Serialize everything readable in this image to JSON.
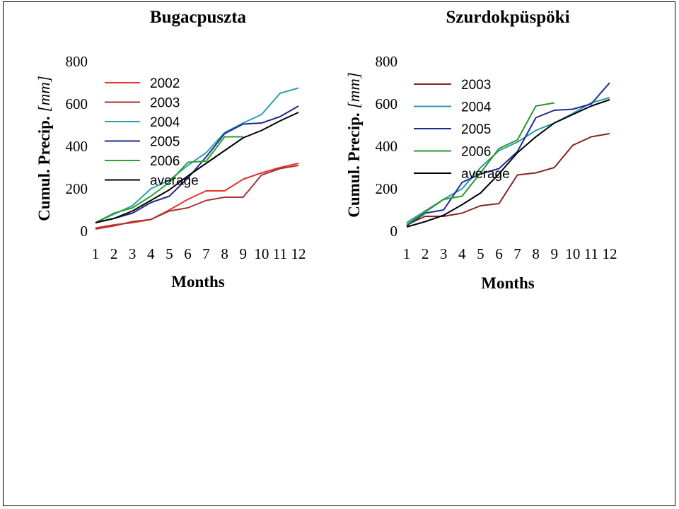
{
  "chart_data": [
    {
      "type": "line",
      "title": "Bugacpuszta",
      "xlabel": "Months",
      "ylabel": "Cumul. Precip.",
      "ylabel_unit": "[mm]",
      "ylim": [
        0,
        800
      ],
      "yticks": [
        "0",
        "200",
        "400",
        "600",
        "800"
      ],
      "categories": [
        "1",
        "2",
        "3",
        "4",
        "5",
        "6",
        "7",
        "8",
        "9",
        "10",
        "11",
        "12"
      ],
      "legend_position": "top-left",
      "series": [
        {
          "name": "2002",
          "color": "#e8322a",
          "values": [
            15,
            30,
            40,
            55,
            100,
            150,
            190,
            190,
            245,
            275,
            300,
            320
          ]
        },
        {
          "name": "2003",
          "color": "#a83232",
          "values": [
            10,
            25,
            45,
            55,
            95,
            110,
            145,
            160,
            160,
            265,
            295,
            310
          ]
        },
        {
          "name": "2004",
          "color": "#2aa0b0",
          "values": [
            40,
            80,
            120,
            200,
            240,
            310,
            370,
            465,
            510,
            550,
            650,
            675
          ]
        },
        {
          "name": "2005",
          "color": "#1e2a8c",
          "values": [
            40,
            60,
            85,
            135,
            165,
            250,
            350,
            460,
            505,
            510,
            540,
            590
          ]
        },
        {
          "name": "2006",
          "color": "#2ca02c",
          "values": [
            40,
            85,
            110,
            165,
            230,
            325,
            330,
            445,
            445,
            null,
            null,
            null
          ]
        },
        {
          "name": "average",
          "color": "#000000",
          "values": [
            40,
            60,
            95,
            145,
            195,
            260,
            320,
            380,
            440,
            475,
            520,
            560
          ]
        }
      ]
    },
    {
      "type": "line",
      "title": "Szurdokpüspöki",
      "xlabel": "Months",
      "ylabel": "Cumul. Precip.",
      "ylabel_unit": "[mm]",
      "ylim": [
        0,
        800
      ],
      "yticks": [
        "0",
        "200",
        "400",
        "600",
        "800"
      ],
      "categories": [
        "1",
        "2",
        "3",
        "4",
        "5",
        "6",
        "7",
        "8",
        "9",
        "10",
        "11",
        "12"
      ],
      "legend_position": "top-left",
      "series": [
        {
          "name": "2003",
          "color": "#8b2020",
          "values": [
            30,
            70,
            70,
            85,
            120,
            130,
            265,
            275,
            300,
            405,
            445,
            460
          ]
        },
        {
          "name": "2004",
          "color": "#2a9aa8",
          "values": [
            40,
            95,
            150,
            200,
            300,
            380,
            420,
            475,
            510,
            555,
            605,
            630
          ]
        },
        {
          "name": "2005",
          "color": "#1e2a9c",
          "values": [
            25,
            85,
            100,
            230,
            270,
            295,
            375,
            535,
            570,
            575,
            600,
            700
          ]
        },
        {
          "name": "2006",
          "color": "#2a962a",
          "values": [
            30,
            90,
            150,
            165,
            275,
            390,
            430,
            590,
            605,
            null,
            null,
            null
          ]
        },
        {
          "name": "average",
          "color": "#000000",
          "values": [
            20,
            45,
            75,
            125,
            180,
            270,
            370,
            445,
            510,
            550,
            590,
            620
          ]
        }
      ]
    }
  ]
}
